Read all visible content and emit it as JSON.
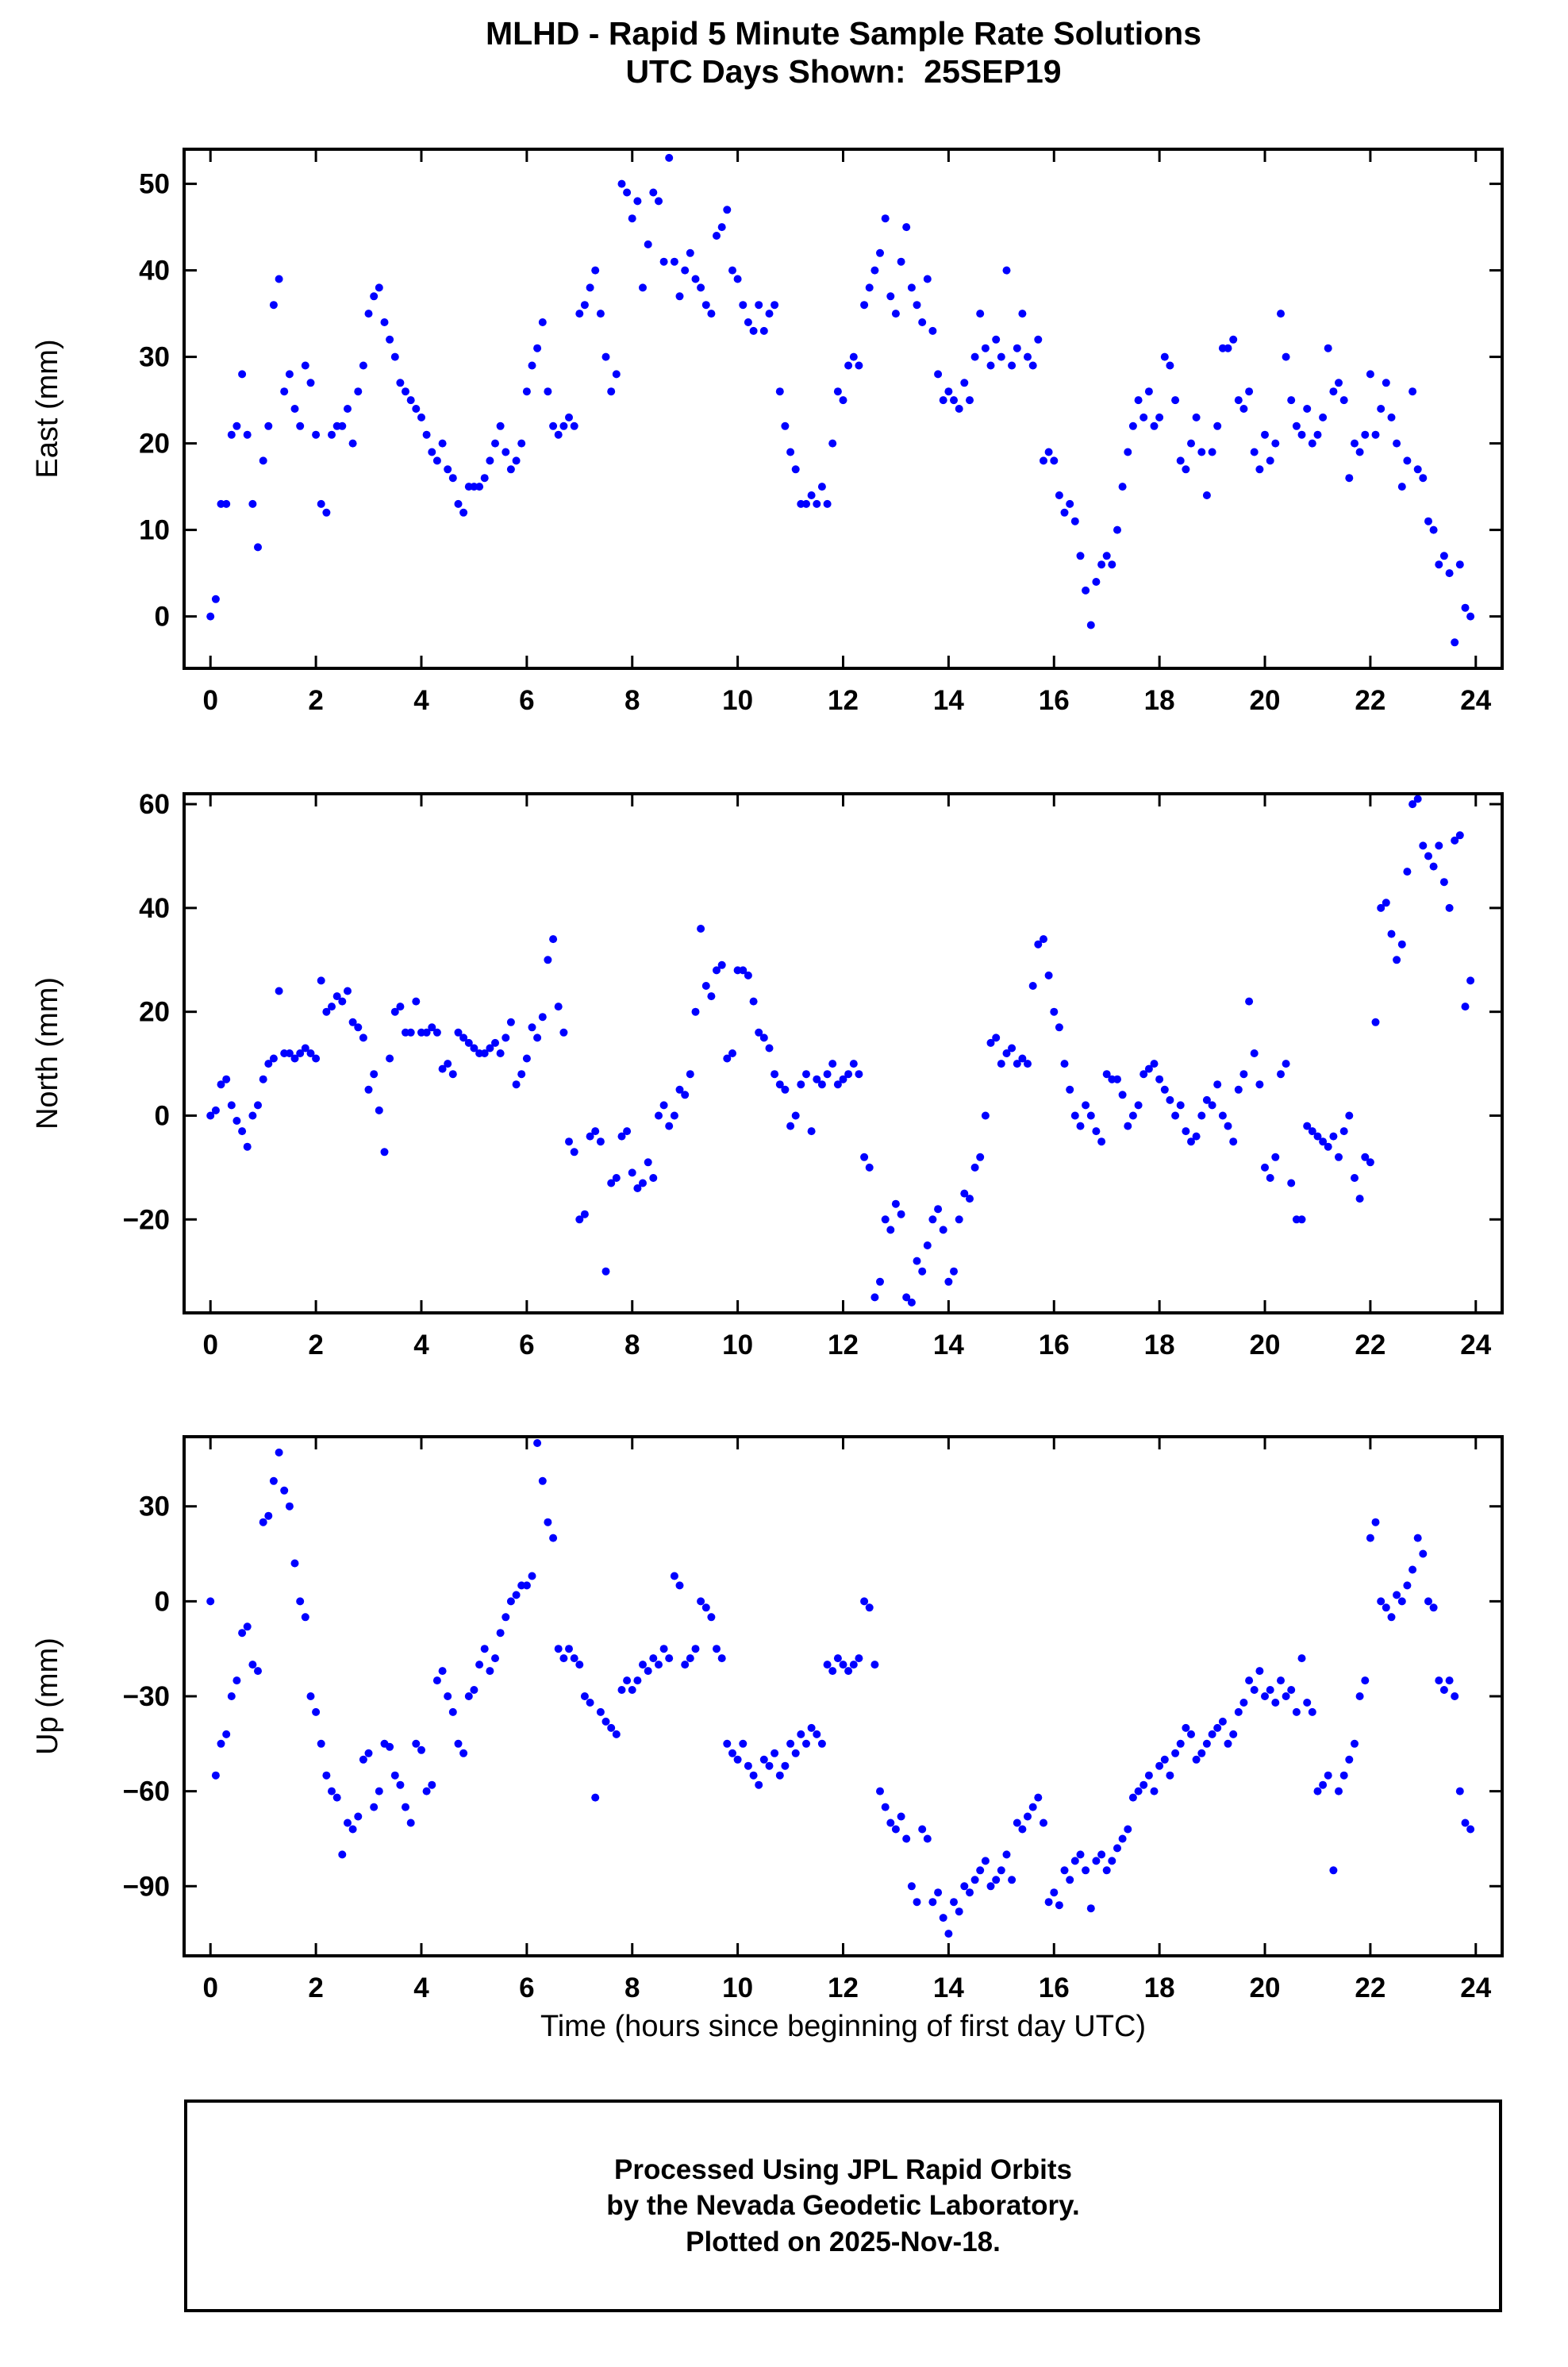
{
  "title": {
    "line1": "MLHD - Rapid 5 Minute Sample Rate Solutions",
    "line2": "UTC Days Shown:  25SEP19"
  },
  "xlabel": "Time (hours since beginning of first day UTC)",
  "footer": {
    "line1": "Processed Using JPL Rapid Orbits",
    "line2": "by the Nevada Geodetic Laboratory.",
    "line3": "Plotted on 2025-Nov-18."
  },
  "colors": {
    "dot": "#0000ff",
    "frame": "#000000"
  },
  "x_axis": {
    "lim": [
      -0.5,
      24.5
    ],
    "ticks": [
      0,
      2,
      4,
      6,
      8,
      10,
      12,
      14,
      16,
      18,
      20,
      22,
      24
    ],
    "label": "Time (hours since beginning of first day UTC)"
  },
  "chart_data": [
    {
      "type": "scatter",
      "id": "east",
      "ylabel": "East (mm)",
      "ylim": [
        -6,
        54
      ],
      "yticks": [
        0,
        10,
        20,
        30,
        40,
        50
      ],
      "x_start": 0,
      "x_step": 0.1,
      "values": [
        0,
        2,
        13,
        13,
        21,
        22,
        28,
        21,
        13,
        8,
        18,
        22,
        36,
        39,
        26,
        28,
        24,
        22,
        29,
        27,
        21,
        13,
        12,
        21,
        22,
        22,
        24,
        20,
        26,
        29,
        35,
        37,
        38,
        34,
        32,
        30,
        27,
        26,
        25,
        24,
        23,
        21,
        19,
        18,
        20,
        17,
        16,
        13,
        12,
        15,
        15,
        15,
        16,
        18,
        20,
        22,
        19,
        17,
        18,
        20,
        26,
        29,
        31,
        34,
        26,
        22,
        21,
        22,
        23,
        22,
        35,
        36,
        38,
        40,
        35,
        30,
        26,
        28,
        50,
        49,
        46,
        48,
        38,
        43,
        49,
        48,
        41,
        53,
        41,
        37,
        40,
        42,
        39,
        38,
        36,
        35,
        44,
        45,
        47,
        40,
        39,
        36,
        34,
        33,
        36,
        33,
        35,
        36,
        26,
        22,
        19,
        17,
        13,
        13,
        14,
        13,
        15,
        13,
        20,
        26,
        25,
        29,
        30,
        29,
        36,
        38,
        40,
        42,
        46,
        37,
        35,
        41,
        45,
        38,
        36,
        34,
        39,
        33,
        28,
        25,
        26,
        25,
        24,
        27,
        25,
        30,
        35,
        31,
        29,
        32,
        30,
        40,
        29,
        31,
        35,
        30,
        29,
        32,
        18,
        19,
        18,
        14,
        12,
        13,
        11,
        7,
        3,
        -1,
        4,
        6,
        7,
        6,
        10,
        15,
        19,
        22,
        25,
        23,
        26,
        22,
        23,
        30,
        29,
        25,
        18,
        17,
        20,
        23,
        19,
        14,
        19,
        22,
        31,
        31,
        32,
        25,
        24,
        26,
        19,
        17,
        21,
        18,
        20,
        35,
        30,
        25,
        22,
        21,
        24,
        20,
        21,
        23,
        31,
        26,
        27,
        25,
        16,
        20,
        19,
        21,
        28,
        21,
        24,
        27,
        23,
        20,
        15,
        18,
        26,
        17,
        16,
        11,
        10,
        6,
        7,
        5,
        -3,
        6,
        1,
        0
      ]
    },
    {
      "type": "scatter",
      "id": "north",
      "ylabel": "North (mm)",
      "ylim": [
        -38,
        62
      ],
      "yticks": [
        -20,
        0,
        20,
        40,
        60
      ],
      "x_start": 0,
      "x_step": 0.1,
      "values": [
        0,
        1,
        6,
        7,
        2,
        -1,
        -3,
        -6,
        0,
        2,
        7,
        10,
        11,
        24,
        12,
        12,
        11,
        12,
        13,
        12,
        11,
        26,
        20,
        21,
        23,
        22,
        24,
        18,
        17,
        15,
        5,
        8,
        1,
        -7,
        11,
        20,
        21,
        16,
        16,
        22,
        16,
        16,
        17,
        16,
        9,
        10,
        8,
        16,
        15,
        14,
        13,
        12,
        12,
        13,
        14,
        12,
        15,
        18,
        6,
        8,
        11,
        17,
        15,
        19,
        30,
        34,
        21,
        16,
        -5,
        -7,
        -20,
        -19,
        -4,
        -3,
        -5,
        -30,
        -13,
        -12,
        -4,
        -3,
        -11,
        -14,
        -13,
        -9,
        -12,
        0,
        2,
        -2,
        0,
        5,
        4,
        8,
        20,
        36,
        25,
        23,
        28,
        29,
        11,
        12,
        28,
        28,
        27,
        22,
        16,
        15,
        13,
        8,
        6,
        5,
        -2,
        0,
        6,
        8,
        -3,
        7,
        6,
        8,
        10,
        6,
        7,
        8,
        10,
        8,
        -8,
        -10,
        -35,
        -32,
        -20,
        -22,
        -17,
        -19,
        -35,
        -36,
        -28,
        -30,
        -25,
        -20,
        -18,
        -22,
        -32,
        -30,
        -20,
        -15,
        -16,
        -10,
        -8,
        0,
        14,
        15,
        10,
        12,
        13,
        10,
        11,
        10,
        25,
        33,
        34,
        27,
        20,
        17,
        10,
        5,
        0,
        -2,
        2,
        0,
        -3,
        -5,
        8,
        7,
        7,
        4,
        -2,
        0,
        2,
        8,
        9,
        10,
        7,
        5,
        3,
        0,
        2,
        -3,
        -5,
        -4,
        0,
        3,
        2,
        6,
        0,
        -2,
        -5,
        5,
        8,
        22,
        12,
        6,
        -10,
        -12,
        -8,
        8,
        10,
        -13,
        -20,
        -20,
        -2,
        -3,
        -4,
        -5,
        -6,
        -4,
        -8,
        -3,
        0,
        -12,
        -16,
        -8,
        -9,
        18,
        40,
        41,
        35,
        30,
        33,
        47,
        60,
        61,
        52,
        50,
        48,
        52,
        45,
        40,
        53,
        54,
        21,
        26
      ]
    },
    {
      "type": "scatter",
      "id": "up",
      "ylabel": "Up (mm)",
      "ylim": [
        -112,
        52
      ],
      "yticks": [
        -90,
        -60,
        -30,
        0,
        30
      ],
      "x_start": 0,
      "x_step": 0.1,
      "values": [
        0,
        -55,
        -45,
        -42,
        -30,
        -25,
        -10,
        -8,
        -20,
        -22,
        25,
        27,
        38,
        47,
        35,
        30,
        12,
        0,
        -5,
        -30,
        -35,
        -45,
        -55,
        -60,
        -62,
        -80,
        -70,
        -72,
        -68,
        -50,
        -48,
        -65,
        -60,
        -45,
        -46,
        -55,
        -58,
        -65,
        -70,
        -45,
        -47,
        -60,
        -58,
        -25,
        -22,
        -30,
        -35,
        -45,
        -48,
        -30,
        -28,
        -20,
        -15,
        -22,
        -18,
        -10,
        -5,
        0,
        2,
        5,
        5,
        8,
        50,
        38,
        25,
        20,
        -15,
        -18,
        -15,
        -18,
        -20,
        -30,
        -32,
        -62,
        -35,
        -38,
        -40,
        -42,
        -28,
        -25,
        -28,
        -25,
        -20,
        -22,
        -18,
        -20,
        -15,
        -18,
        8,
        5,
        -20,
        -18,
        -15,
        0,
        -2,
        -5,
        -15,
        -18,
        -45,
        -48,
        -50,
        -45,
        -52,
        -55,
        -58,
        -50,
        -52,
        -48,
        -55,
        -52,
        -45,
        -48,
        -42,
        -45,
        -40,
        -42,
        -45,
        -20,
        -22,
        -18,
        -20,
        -22,
        -20,
        -18,
        0,
        -2,
        -20,
        -60,
        -65,
        -70,
        -72,
        -68,
        -75,
        -90,
        -95,
        -72,
        -75,
        -95,
        -92,
        -100,
        -105,
        -95,
        -98,
        -90,
        -92,
        -88,
        -85,
        -82,
        -90,
        -88,
        -85,
        -80,
        -88,
        -70,
        -72,
        -68,
        -65,
        -62,
        -70,
        -95,
        -92,
        -96,
        -85,
        -88,
        -82,
        -80,
        -85,
        -97,
        -82,
        -80,
        -85,
        -82,
        -78,
        -75,
        -72,
        -62,
        -60,
        -58,
        -55,
        -60,
        -52,
        -50,
        -55,
        -48,
        -45,
        -40,
        -42,
        -50,
        -48,
        -45,
        -42,
        -40,
        -38,
        -45,
        -42,
        -35,
        -32,
        -25,
        -28,
        -22,
        -30,
        -28,
        -32,
        -25,
        -30,
        -28,
        -35,
        -18,
        -32,
        -35,
        -60,
        -58,
        -55,
        -85,
        -60,
        -55,
        -50,
        -45,
        -30,
        -25,
        20,
        25,
        0,
        -2,
        -5,
        2,
        0,
        5,
        10,
        20,
        15,
        0,
        -2,
        -25,
        -28,
        -25,
        -30,
        -60,
        -70,
        -72
      ]
    }
  ]
}
